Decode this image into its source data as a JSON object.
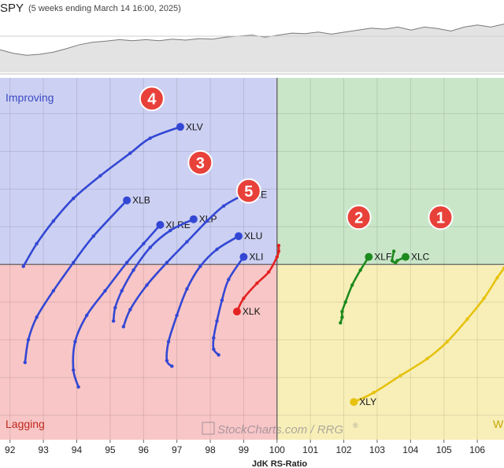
{
  "header": {
    "symbol": "SPY",
    "subtitle": "(5 weeks ending March 14 16:00, 2025)"
  },
  "quadrants": {
    "improving": {
      "label": "Improving",
      "fill": "#ccd0f2",
      "label_color": "#3b4bc4"
    },
    "leading": {
      "label": "",
      "fill": "#c9e6c9"
    },
    "lagging": {
      "label": "Lagging",
      "fill": "#f8c6c6",
      "label_color": "#c0281f"
    },
    "weakening": {
      "label": "W",
      "fill": "#f8efb8",
      "label_color": "#c9a500"
    }
  },
  "watermark": "StockCharts.com / RRG",
  "watermark_mark": "®",
  "badges": [
    {
      "text": "1",
      "x": 104.9,
      "y": 101.25
    },
    {
      "text": "2",
      "x": 102.45,
      "y": 101.25
    },
    {
      "text": "3",
      "x": 97.7,
      "y": 102.7
    },
    {
      "text": "4",
      "x": 96.25,
      "y": 104.4
    },
    {
      "text": "5",
      "x": 99.15,
      "y": 101.95
    }
  ],
  "price_line": {
    "values": [
      0.55,
      0.62,
      0.66,
      0.64,
      0.6,
      0.53,
      0.45,
      0.4,
      0.38,
      0.35,
      0.37,
      0.35,
      0.37,
      0.34,
      0.36,
      0.33,
      0.34,
      0.3,
      0.28,
      0.26,
      0.3,
      0.26,
      0.22,
      0.23,
      0.2,
      0.24,
      0.2,
      0.16,
      0.12,
      0.14,
      0.1,
      0.16,
      0.1,
      0.13,
      0.18,
      0.1,
      0.06,
      0.1,
      0.04
    ]
  },
  "chart_data": {
    "type": "scatter",
    "title": "",
    "xlabel": "JdK RS-Ratio",
    "ylabel": "",
    "xlim": [
      91.7,
      106.8
    ],
    "ylim": [
      95.35,
      104.95
    ],
    "x_ticks": [
      92,
      93,
      94,
      95,
      96,
      97,
      98,
      99,
      100,
      101,
      102,
      103,
      104,
      105,
      106
    ],
    "center": [
      100,
      100
    ],
    "series": [
      {
        "name": "XLV",
        "color": "#3347d4",
        "points": [
          [
            92.4,
            99.95
          ],
          [
            92.8,
            100.55
          ],
          [
            93.3,
            101.15
          ],
          [
            93.9,
            101.75
          ],
          [
            94.7,
            102.35
          ],
          [
            95.6,
            102.95
          ],
          [
            96.2,
            103.35
          ],
          [
            97.1,
            103.65
          ]
        ]
      },
      {
        "name": "XLB",
        "color": "#3347d4",
        "points": [
          [
            92.45,
            97.4
          ],
          [
            92.55,
            98.0
          ],
          [
            92.8,
            98.6
          ],
          [
            93.3,
            99.3
          ],
          [
            93.9,
            100.05
          ],
          [
            94.5,
            100.75
          ],
          [
            95.5,
            101.7
          ]
        ]
      },
      {
        "name": "XLRE",
        "color": "#3347d4",
        "points": [
          [
            94.05,
            96.75
          ],
          [
            93.9,
            97.2
          ],
          [
            93.95,
            97.95
          ],
          [
            94.3,
            98.65
          ],
          [
            94.85,
            99.3
          ],
          [
            95.5,
            100.05
          ],
          [
            96.0,
            100.55
          ],
          [
            96.5,
            101.05
          ]
        ]
      },
      {
        "name": "XLP",
        "color": "#3347d4",
        "points": [
          [
            95.1,
            98.5
          ],
          [
            95.15,
            98.85
          ],
          [
            95.35,
            99.3
          ],
          [
            95.7,
            99.85
          ],
          [
            96.2,
            100.45
          ],
          [
            96.8,
            100.9
          ],
          [
            97.5,
            101.2
          ]
        ]
      },
      {
        "name": "XLE",
        "color": "#3347d4",
        "points": [
          [
            95.4,
            98.35
          ],
          [
            95.6,
            98.8
          ],
          [
            96.1,
            99.45
          ],
          [
            96.7,
            100.05
          ],
          [
            97.3,
            100.6
          ],
          [
            97.9,
            101.15
          ],
          [
            98.4,
            101.55
          ],
          [
            99.0,
            101.85
          ]
        ]
      },
      {
        "name": "XLU",
        "color": "#3347d4",
        "points": [
          [
            96.85,
            97.3
          ],
          [
            96.7,
            97.45
          ],
          [
            96.75,
            97.95
          ],
          [
            97.0,
            98.65
          ],
          [
            97.3,
            99.35
          ],
          [
            97.7,
            99.95
          ],
          [
            98.2,
            100.4
          ],
          [
            98.85,
            100.75
          ]
        ]
      },
      {
        "name": "XLI",
        "color": "#3347d4",
        "points": [
          [
            98.25,
            97.6
          ],
          [
            98.1,
            97.75
          ],
          [
            98.1,
            98.05
          ],
          [
            98.2,
            98.5
          ],
          [
            98.35,
            99.05
          ],
          [
            98.55,
            99.6
          ],
          [
            99.0,
            100.2
          ]
        ]
      },
      {
        "name": "XLK",
        "color": "#e32222",
        "points": [
          [
            100.05,
            100.5
          ],
          [
            100.05,
            100.35
          ],
          [
            100.0,
            100.2
          ],
          [
            99.75,
            99.8
          ],
          [
            99.4,
            99.5
          ],
          [
            99.0,
            99.1
          ],
          [
            98.8,
            98.75
          ]
        ]
      },
      {
        "name": "XLF",
        "color": "#1d8a1d",
        "points": [
          [
            101.9,
            98.45
          ],
          [
            101.95,
            98.6
          ],
          [
            101.95,
            98.75
          ],
          [
            102.05,
            99.0
          ],
          [
            102.25,
            99.45
          ],
          [
            102.5,
            99.85
          ],
          [
            102.75,
            100.2
          ]
        ]
      },
      {
        "name": "XLC",
        "color": "#1d8a1d",
        "points": [
          [
            103.5,
            100.35
          ],
          [
            103.45,
            100.1
          ],
          [
            103.55,
            100.05
          ],
          [
            103.6,
            100.1
          ],
          [
            103.85,
            100.2
          ]
        ]
      },
      {
        "name": "XLY",
        "color": "#e6c20e",
        "points": [
          [
            106.8,
            99.9
          ],
          [
            106.6,
            99.65
          ],
          [
            106.2,
            99.1
          ],
          [
            105.7,
            98.55
          ],
          [
            105.1,
            97.95
          ],
          [
            104.5,
            97.5
          ],
          [
            103.7,
            97.05
          ],
          [
            102.9,
            96.6
          ],
          [
            102.3,
            96.35
          ]
        ]
      }
    ]
  }
}
